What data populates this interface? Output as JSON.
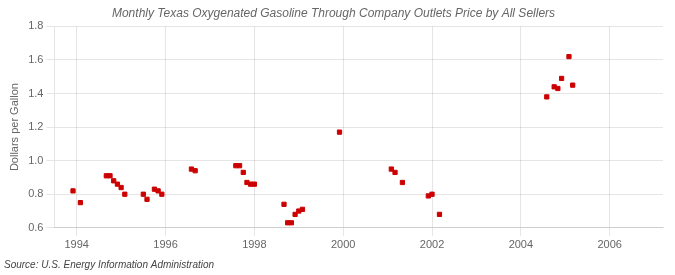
{
  "chart_data": {
    "type": "scatter",
    "title": "Monthly Texas Oxygenated Gasoline Through Company Outlets Price by All Sellers",
    "ylabel": "Dollars per Gallon",
    "source": "Source: U.S. Energy Information Administration",
    "color": "#cc0000",
    "marker": "square",
    "grid": true,
    "xlim": [
      1993.5,
      2007.2
    ],
    "ylim": [
      0.6,
      1.8
    ],
    "xticks": [
      1994,
      1996,
      1998,
      2000,
      2002,
      2004,
      2006
    ],
    "yticks": [
      0.6,
      0.8,
      {
        "value": 1.0,
        "label": "1.0"
      },
      1.2,
      1.4,
      1.6,
      1.8
    ],
    "x": [
      1993.917,
      1994.083,
      1994.667,
      1994.75,
      1994.833,
      1994.917,
      1995.0,
      1995.083,
      1995.5,
      1995.583,
      1995.75,
      1995.833,
      1995.917,
      1996.583,
      1996.667,
      1997.583,
      1997.667,
      1997.75,
      1997.833,
      1997.917,
      1998.0,
      1998.667,
      1998.75,
      1998.833,
      1998.917,
      1999.0,
      1999.083,
      1999.917,
      2001.083,
      2001.167,
      2001.333,
      2001.917,
      2002.0,
      2002.167,
      2004.583,
      2004.75,
      2004.833,
      2004.917,
      2005.083,
      2005.167
    ],
    "values": [
      0.82,
      0.75,
      0.91,
      0.91,
      0.88,
      0.86,
      0.84,
      0.8,
      0.8,
      0.77,
      0.83,
      0.82,
      0.8,
      0.95,
      0.94,
      0.97,
      0.97,
      0.93,
      0.87,
      0.86,
      0.86,
      0.74,
      0.63,
      0.63,
      0.68,
      0.7,
      0.71,
      1.17,
      0.95,
      0.93,
      0.87,
      0.79,
      0.8,
      0.68,
      1.38,
      1.44,
      1.43,
      1.49,
      1.62,
      1.45
    ]
  }
}
